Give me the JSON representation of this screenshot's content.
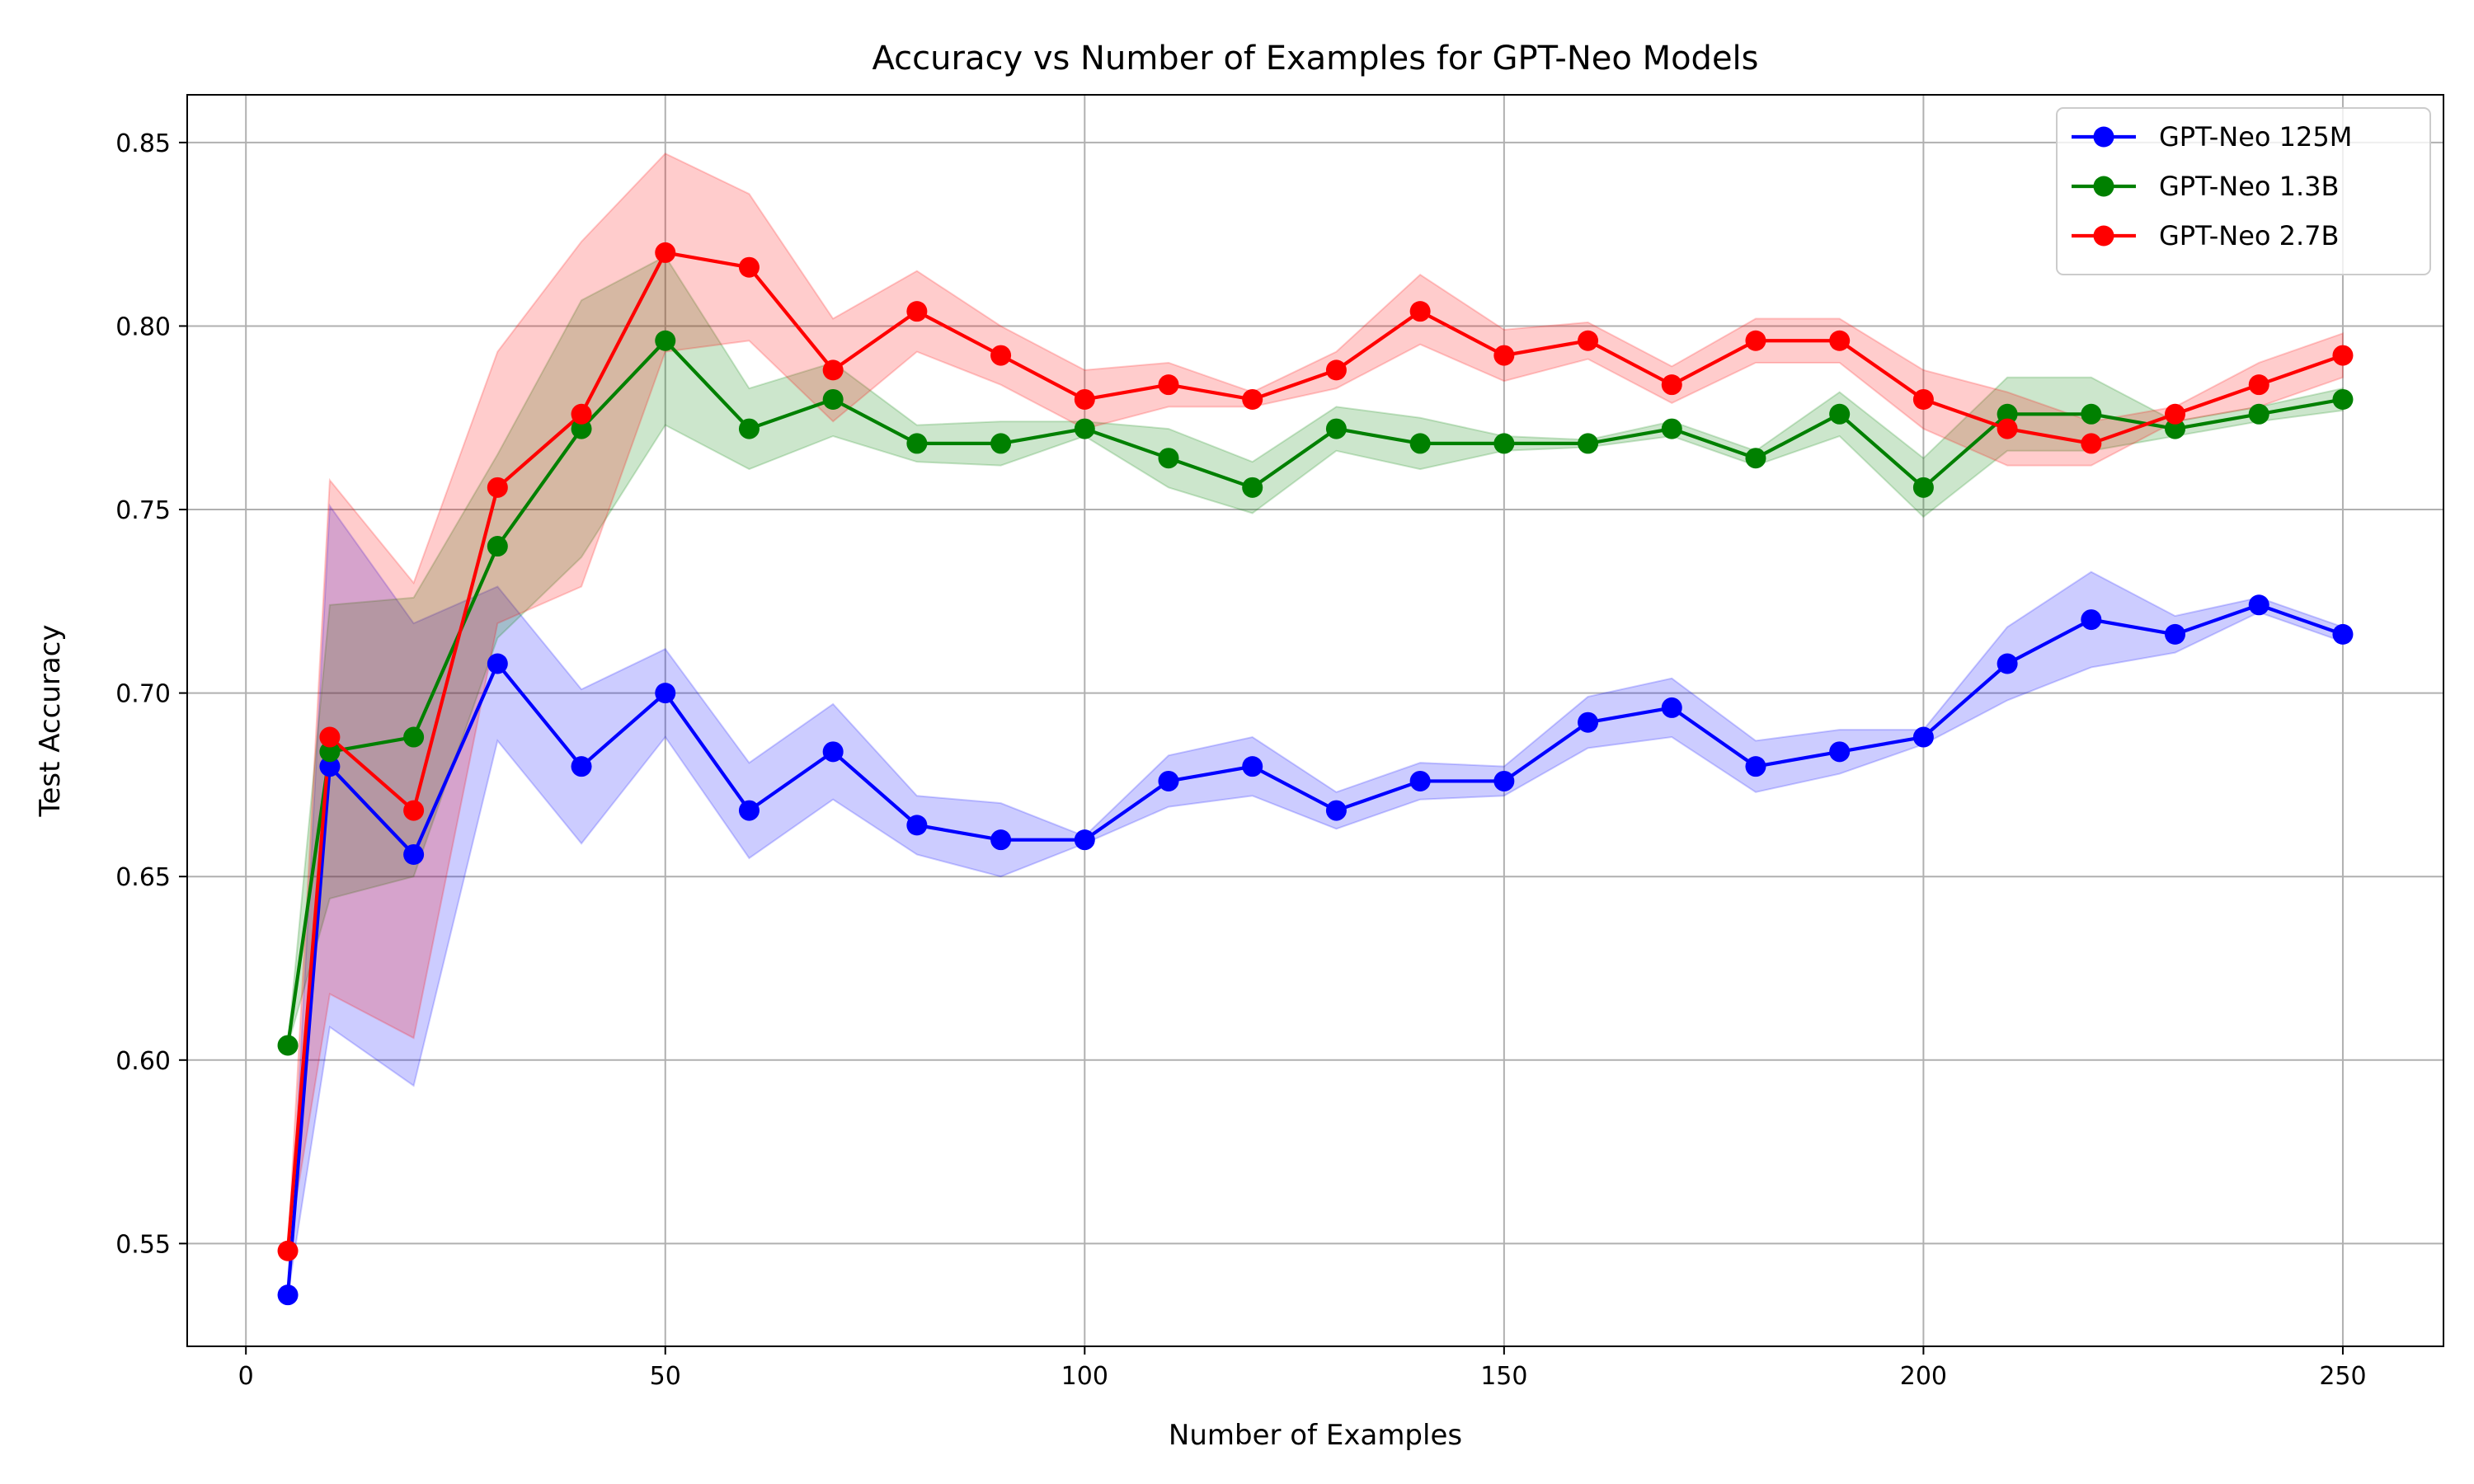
{
  "chart_data": {
    "type": "line",
    "title": "Accuracy vs Number of Examples for GPT-Neo Models",
    "xlabel": "Number of Examples",
    "ylabel": "Test Accuracy",
    "xlim": [
      -7,
      262
    ],
    "ylim": [
      0.522,
      0.863
    ],
    "xticks": [
      0,
      50,
      100,
      150,
      200,
      250
    ],
    "yticks": [
      0.55,
      0.6,
      0.65,
      0.7,
      0.75,
      0.8,
      0.85
    ],
    "ytick_labels": [
      "0.55",
      "0.60",
      "0.65",
      "0.70",
      "0.75",
      "0.80",
      "0.85"
    ],
    "grid": true,
    "legend_position": "top-right",
    "x": [
      5,
      10,
      20,
      30,
      40,
      50,
      60,
      70,
      80,
      90,
      100,
      110,
      120,
      130,
      140,
      150,
      160,
      170,
      180,
      190,
      200,
      210,
      220,
      230,
      240,
      250
    ],
    "series": [
      {
        "name": "GPT-Neo 125M",
        "color": "#0000ff",
        "values": [
          0.536,
          0.68,
          0.656,
          0.708,
          0.68,
          0.7,
          0.668,
          0.684,
          0.664,
          0.66,
          0.66,
          0.676,
          0.68,
          0.668,
          0.676,
          0.676,
          0.692,
          0.696,
          0.68,
          0.684,
          0.688,
          0.708,
          0.72,
          0.716,
          0.724,
          0.716
        ],
        "lower": [
          0.536,
          0.609,
          0.593,
          0.687,
          0.659,
          0.688,
          0.655,
          0.671,
          0.656,
          0.65,
          0.659,
          0.669,
          0.672,
          0.663,
          0.671,
          0.672,
          0.685,
          0.688,
          0.673,
          0.678,
          0.686,
          0.698,
          0.707,
          0.711,
          0.722,
          0.714
        ],
        "upper": [
          0.536,
          0.751,
          0.719,
          0.729,
          0.701,
          0.712,
          0.681,
          0.697,
          0.672,
          0.67,
          0.661,
          0.683,
          0.688,
          0.673,
          0.681,
          0.68,
          0.699,
          0.704,
          0.687,
          0.69,
          0.69,
          0.718,
          0.733,
          0.721,
          0.726,
          0.718
        ]
      },
      {
        "name": "GPT-Neo 1.3B",
        "color": "#008000",
        "values": [
          0.604,
          0.684,
          0.688,
          0.74,
          0.772,
          0.796,
          0.772,
          0.78,
          0.768,
          0.768,
          0.772,
          0.764,
          0.756,
          0.772,
          0.768,
          0.768,
          0.768,
          0.772,
          0.764,
          0.776,
          0.756,
          0.776,
          0.776,
          0.772,
          0.776,
          0.78
        ],
        "lower": [
          0.604,
          0.644,
          0.65,
          0.715,
          0.737,
          0.773,
          0.761,
          0.77,
          0.763,
          0.762,
          0.77,
          0.756,
          0.749,
          0.766,
          0.761,
          0.766,
          0.767,
          0.77,
          0.762,
          0.77,
          0.748,
          0.766,
          0.766,
          0.77,
          0.774,
          0.777
        ],
        "upper": [
          0.604,
          0.724,
          0.726,
          0.765,
          0.807,
          0.819,
          0.783,
          0.79,
          0.773,
          0.774,
          0.774,
          0.772,
          0.763,
          0.778,
          0.775,
          0.77,
          0.769,
          0.774,
          0.766,
          0.782,
          0.764,
          0.786,
          0.786,
          0.774,
          0.778,
          0.783
        ]
      },
      {
        "name": "GPT-Neo 2.7B",
        "color": "#ff0000",
        "values": [
          0.548,
          0.688,
          0.668,
          0.756,
          0.776,
          0.82,
          0.816,
          0.788,
          0.804,
          0.792,
          0.78,
          0.784,
          0.78,
          0.788,
          0.804,
          0.792,
          0.796,
          0.784,
          0.796,
          0.796,
          0.78,
          0.772,
          0.768,
          0.776,
          0.784,
          0.792
        ],
        "lower": [
          0.548,
          0.618,
          0.606,
          0.719,
          0.729,
          0.793,
          0.796,
          0.774,
          0.793,
          0.784,
          0.772,
          0.778,
          0.778,
          0.783,
          0.795,
          0.785,
          0.791,
          0.779,
          0.79,
          0.79,
          0.772,
          0.762,
          0.762,
          0.774,
          0.778,
          0.786
        ],
        "upper": [
          0.548,
          0.758,
          0.73,
          0.793,
          0.823,
          0.847,
          0.836,
          0.802,
          0.815,
          0.8,
          0.788,
          0.79,
          0.782,
          0.793,
          0.814,
          0.799,
          0.801,
          0.789,
          0.802,
          0.802,
          0.788,
          0.782,
          0.774,
          0.778,
          0.79,
          0.798
        ]
      }
    ]
  }
}
